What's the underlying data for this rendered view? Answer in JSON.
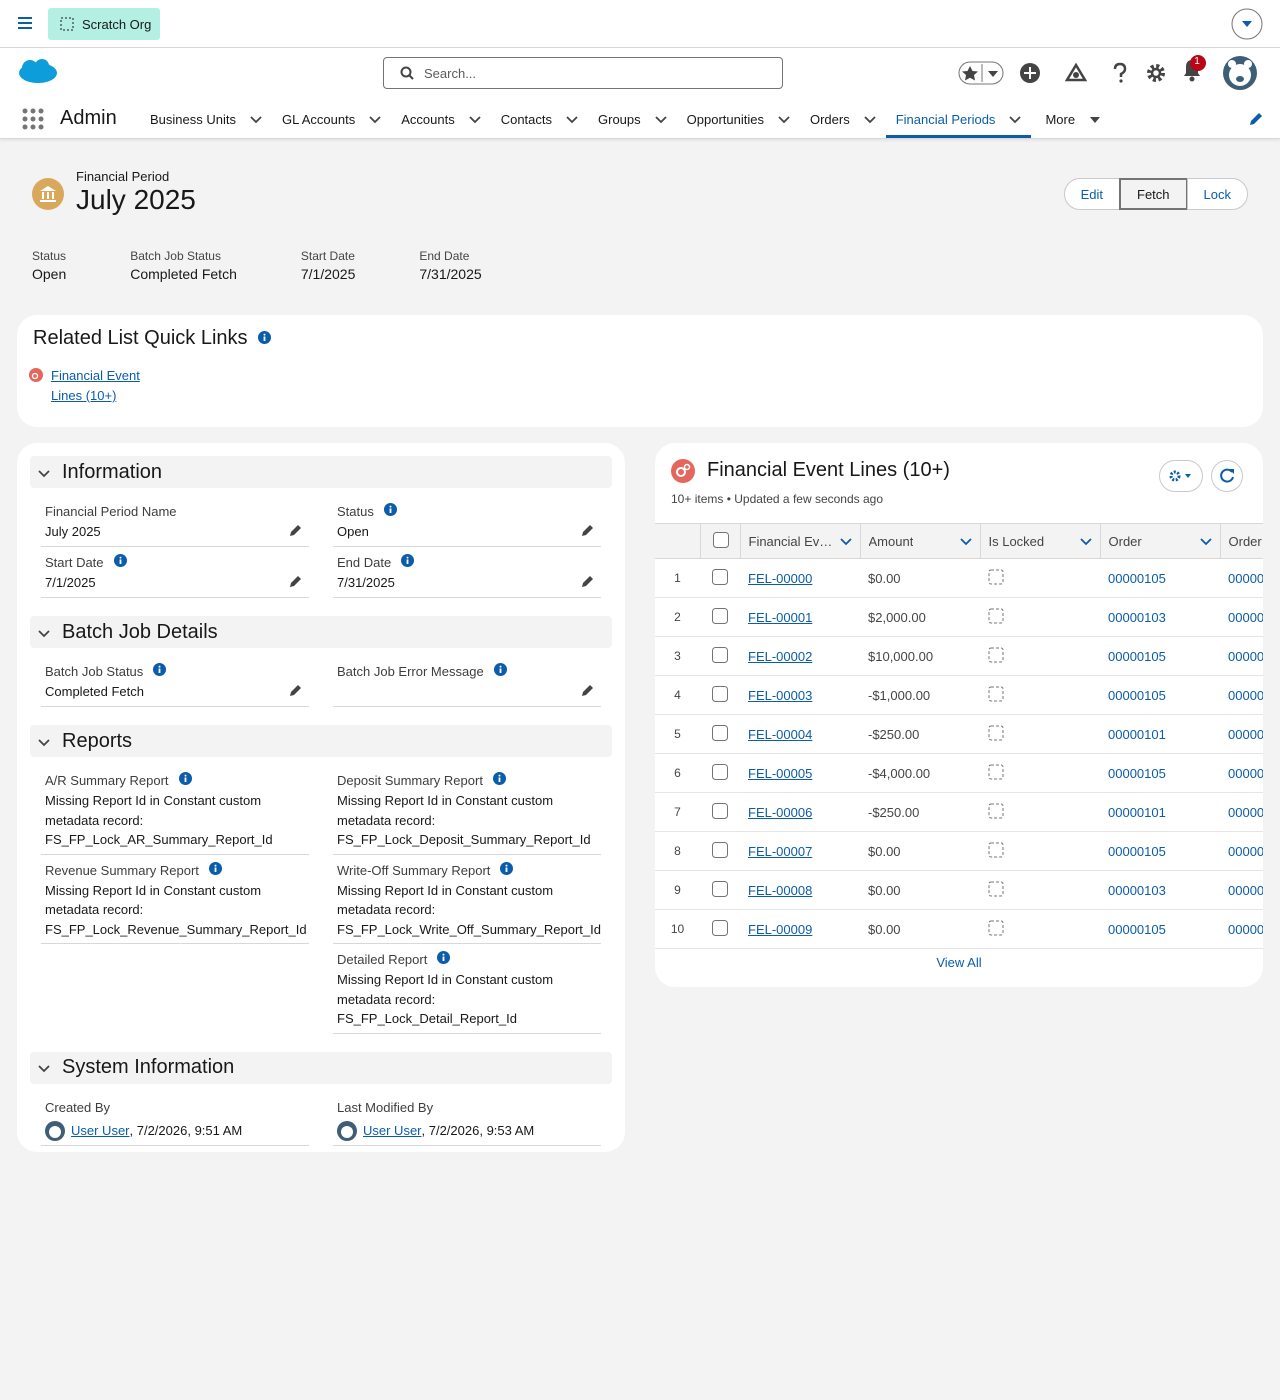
{
  "top_bar": {
    "org_label": "Scratch Org"
  },
  "global_header": {
    "search_placeholder": "Search...",
    "notification_count": 1
  },
  "nav": {
    "app_name": "Admin",
    "tabs": [
      "Business Units",
      "GL Accounts",
      "Accounts",
      "Contacts",
      "Groups",
      "Opportunities",
      "Orders",
      "Financial Periods"
    ],
    "more_label": "More"
  },
  "record_header": {
    "object_label": "Financial Period",
    "title": "July 2025",
    "actions": [
      "Edit",
      "Fetch",
      "Lock"
    ],
    "highlights": [
      {
        "label": "Status",
        "value": "Open"
      },
      {
        "label": "Batch Job Status",
        "value": "Completed Fetch"
      },
      {
        "label": "Start Date",
        "value": "7/1/2025"
      },
      {
        "label": "End Date",
        "value": "7/31/2025"
      }
    ]
  },
  "quick_links": {
    "title": "Related List Quick Links",
    "links": [
      "Financial Event Lines (10+)"
    ]
  },
  "details": {
    "sections": [
      {
        "title": "Information",
        "fields": [
          {
            "label": "Financial Period Name",
            "value": "July 2025",
            "info": false,
            "editable": true
          },
          {
            "label": "Status",
            "value": "Open",
            "info": true,
            "editable": true
          },
          {
            "label": "Start Date",
            "value": "7/1/2025",
            "info": true,
            "editable": true
          },
          {
            "label": "End Date",
            "value": "7/31/2025",
            "info": true,
            "editable": true
          }
        ]
      },
      {
        "title": "Batch Job Details",
        "fields": [
          {
            "label": "Batch Job Status",
            "value": "Completed Fetch",
            "info": true,
            "editable": true
          },
          {
            "label": "Batch Job Error Message",
            "value": null,
            "info": true,
            "editable": true
          }
        ]
      },
      {
        "title": "Reports",
        "fields": [
          {
            "label": "A/R Summary Report",
            "value": "Missing Report Id in Constant custom metadata record: FS_FP_Lock_AR_Summary_Report_Id",
            "info": true,
            "editable": false
          },
          {
            "label": "Deposit Summary Report",
            "value": "Missing Report Id in Constant custom metadata record: FS_FP_Lock_Deposit_Summary_Report_Id",
            "info": true,
            "editable": false
          },
          {
            "label": "Revenue Summary Report",
            "value": "Missing Report Id in Constant custom metadata record: FS_FP_Lock_Revenue_Summary_Report_Id",
            "info": true,
            "editable": false
          },
          {
            "label": "Write-Off Summary Report",
            "value": "Missing Report Id in Constant custom metadata record: FS_FP_Lock_Write_Off_Summary_Report_Id",
            "info": true,
            "editable": false
          },
          null,
          {
            "label": "Detailed Report",
            "value": "Missing Report Id in Constant custom metadata record: FS_FP_Lock_Detail_Report_Id",
            "info": true,
            "editable": false
          }
        ]
      },
      {
        "title": "System Information",
        "fields": [
          {
            "label": "Created By",
            "user": "User User",
            "value": ", 7/2/2026, 9:51 AM",
            "info": false,
            "editable": false
          },
          {
            "label": "Last Modified By",
            "user": "User User",
            "value": ", 7/2/2026, 9:53 AM",
            "info": false,
            "editable": false
          }
        ]
      }
    ]
  },
  "related_list": {
    "title": "Financial Event Lines (10+)",
    "summary": "10+ items • Updated a few seconds ago",
    "columns": [
      "Financial Ev…",
      "Amount",
      "Is Locked",
      "Order",
      "Order"
    ],
    "rows": [
      {
        "number": 1,
        "name": "FEL-00000",
        "amount": "$0.00",
        "order": "00000105",
        "order_2": "00000"
      },
      {
        "number": 2,
        "name": "FEL-00001",
        "amount": "$2,000.00",
        "order": "00000103",
        "order_2": "00000"
      },
      {
        "number": 3,
        "name": "FEL-00002",
        "amount": "$10,000.00",
        "order": "00000105",
        "order_2": "00000"
      },
      {
        "number": 4,
        "name": "FEL-00003",
        "amount": "-$1,000.00",
        "order": "00000105",
        "order_2": "00000"
      },
      {
        "number": 5,
        "name": "FEL-00004",
        "amount": "-$250.00",
        "order": "00000101",
        "order_2": "00000"
      },
      {
        "number": 6,
        "name": "FEL-00005",
        "amount": "-$4,000.00",
        "order": "00000105",
        "order_2": "00000"
      },
      {
        "number": 7,
        "name": "FEL-00006",
        "amount": "-$250.00",
        "order": "00000101",
        "order_2": "00000"
      },
      {
        "number": 8,
        "name": "FEL-00007",
        "amount": "$0.00",
        "order": "00000105",
        "order_2": "00000"
      },
      {
        "number": 9,
        "name": "FEL-00008",
        "amount": "$0.00",
        "order": "00000103",
        "order_2": "00000"
      },
      {
        "number": 10,
        "name": "FEL-00009",
        "amount": "$0.00",
        "order": "00000105",
        "order_2": "00000"
      }
    ],
    "view_all": "View All"
  }
}
